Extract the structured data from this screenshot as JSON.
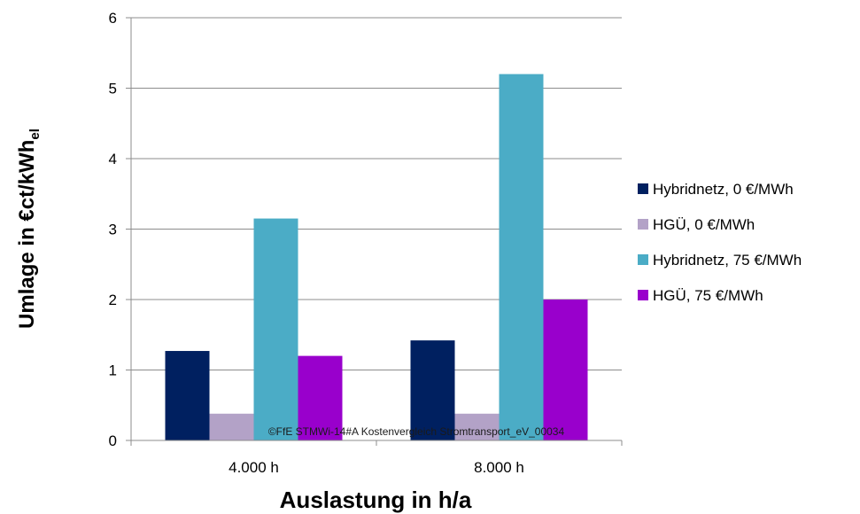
{
  "chart_data": {
    "type": "bar",
    "categories": [
      "4.000 h",
      "8.000 h"
    ],
    "series": [
      {
        "name": "Hybridnetz, 0 €/MWh",
        "values": [
          1.27,
          1.42
        ],
        "color": "#002060"
      },
      {
        "name": "HGÜ, 0 €/MWh",
        "values": [
          0.38,
          0.38
        ],
        "color": "#b3a2c7"
      },
      {
        "name": "Hybridnetz, 75 €/MWh",
        "values": [
          3.15,
          5.2
        ],
        "color": "#4bacc6"
      },
      {
        "name": "HGÜ, 75 €/MWh",
        "values": [
          1.2,
          2.0
        ],
        "color": "#9900cc"
      }
    ],
    "ylim": [
      0,
      6
    ],
    "yticks": [
      0,
      1,
      2,
      3,
      4,
      5,
      6
    ],
    "xlabel": "Auslastung in h/a",
    "ylabel": "Umlage in €ct/kWh",
    "ylabel_subscript": "el",
    "grid": true,
    "legend_position": "right",
    "watermark": "©FfE STMWi-14#A Kostenvergleich Stromtransport_eV_00034"
  }
}
